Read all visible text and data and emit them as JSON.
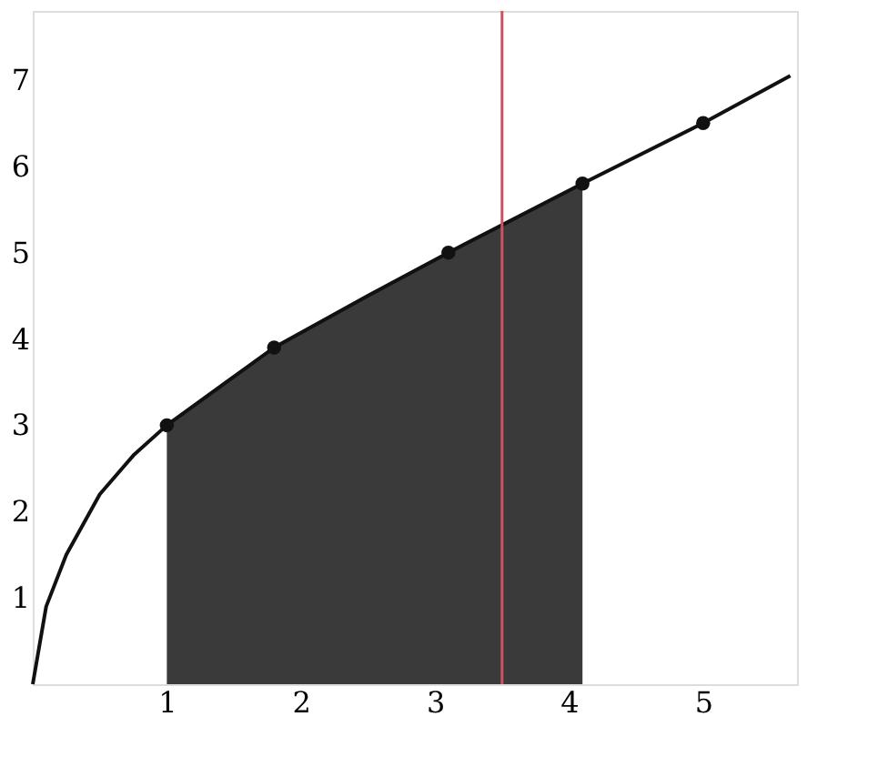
{
  "chart_data": {
    "type": "line",
    "xlim": [
      0,
      5.7
    ],
    "ylim": [
      0,
      7.8
    ],
    "xticks": [
      1,
      2,
      3,
      4,
      5
    ],
    "yticks": [
      1,
      2,
      3,
      4,
      5,
      6,
      7
    ],
    "grid": false,
    "series": [
      {
        "type": "area",
        "color": "#3a3a3a",
        "x": [
          1,
          1.8,
          2.5,
          3.1,
          4.1
        ],
        "values": [
          3,
          3.9,
          4.5,
          5.0,
          5.8
        ]
      },
      {
        "color": "#111111",
        "marker": "none",
        "line_style": "solid",
        "x": [
          0,
          0.1,
          0.25,
          0.5,
          0.75,
          1,
          1.8,
          2.5,
          3.1,
          4.1,
          5,
          5.65
        ],
        "values": [
          0,
          0.9,
          1.5,
          2.2,
          2.65,
          3,
          3.9,
          4.5,
          5.0,
          5.8,
          6.5,
          7.05
        ]
      },
      {
        "type": "scatter",
        "color": "#111111",
        "marker": "circle",
        "x": [
          1,
          1.8,
          3.1,
          4.1,
          5
        ],
        "values": [
          3,
          3.9,
          5.0,
          5.8,
          6.5
        ]
      }
    ],
    "ref_lines": [
      {
        "axis": "x",
        "value": 3.5,
        "color": "#d05060"
      }
    ]
  }
}
